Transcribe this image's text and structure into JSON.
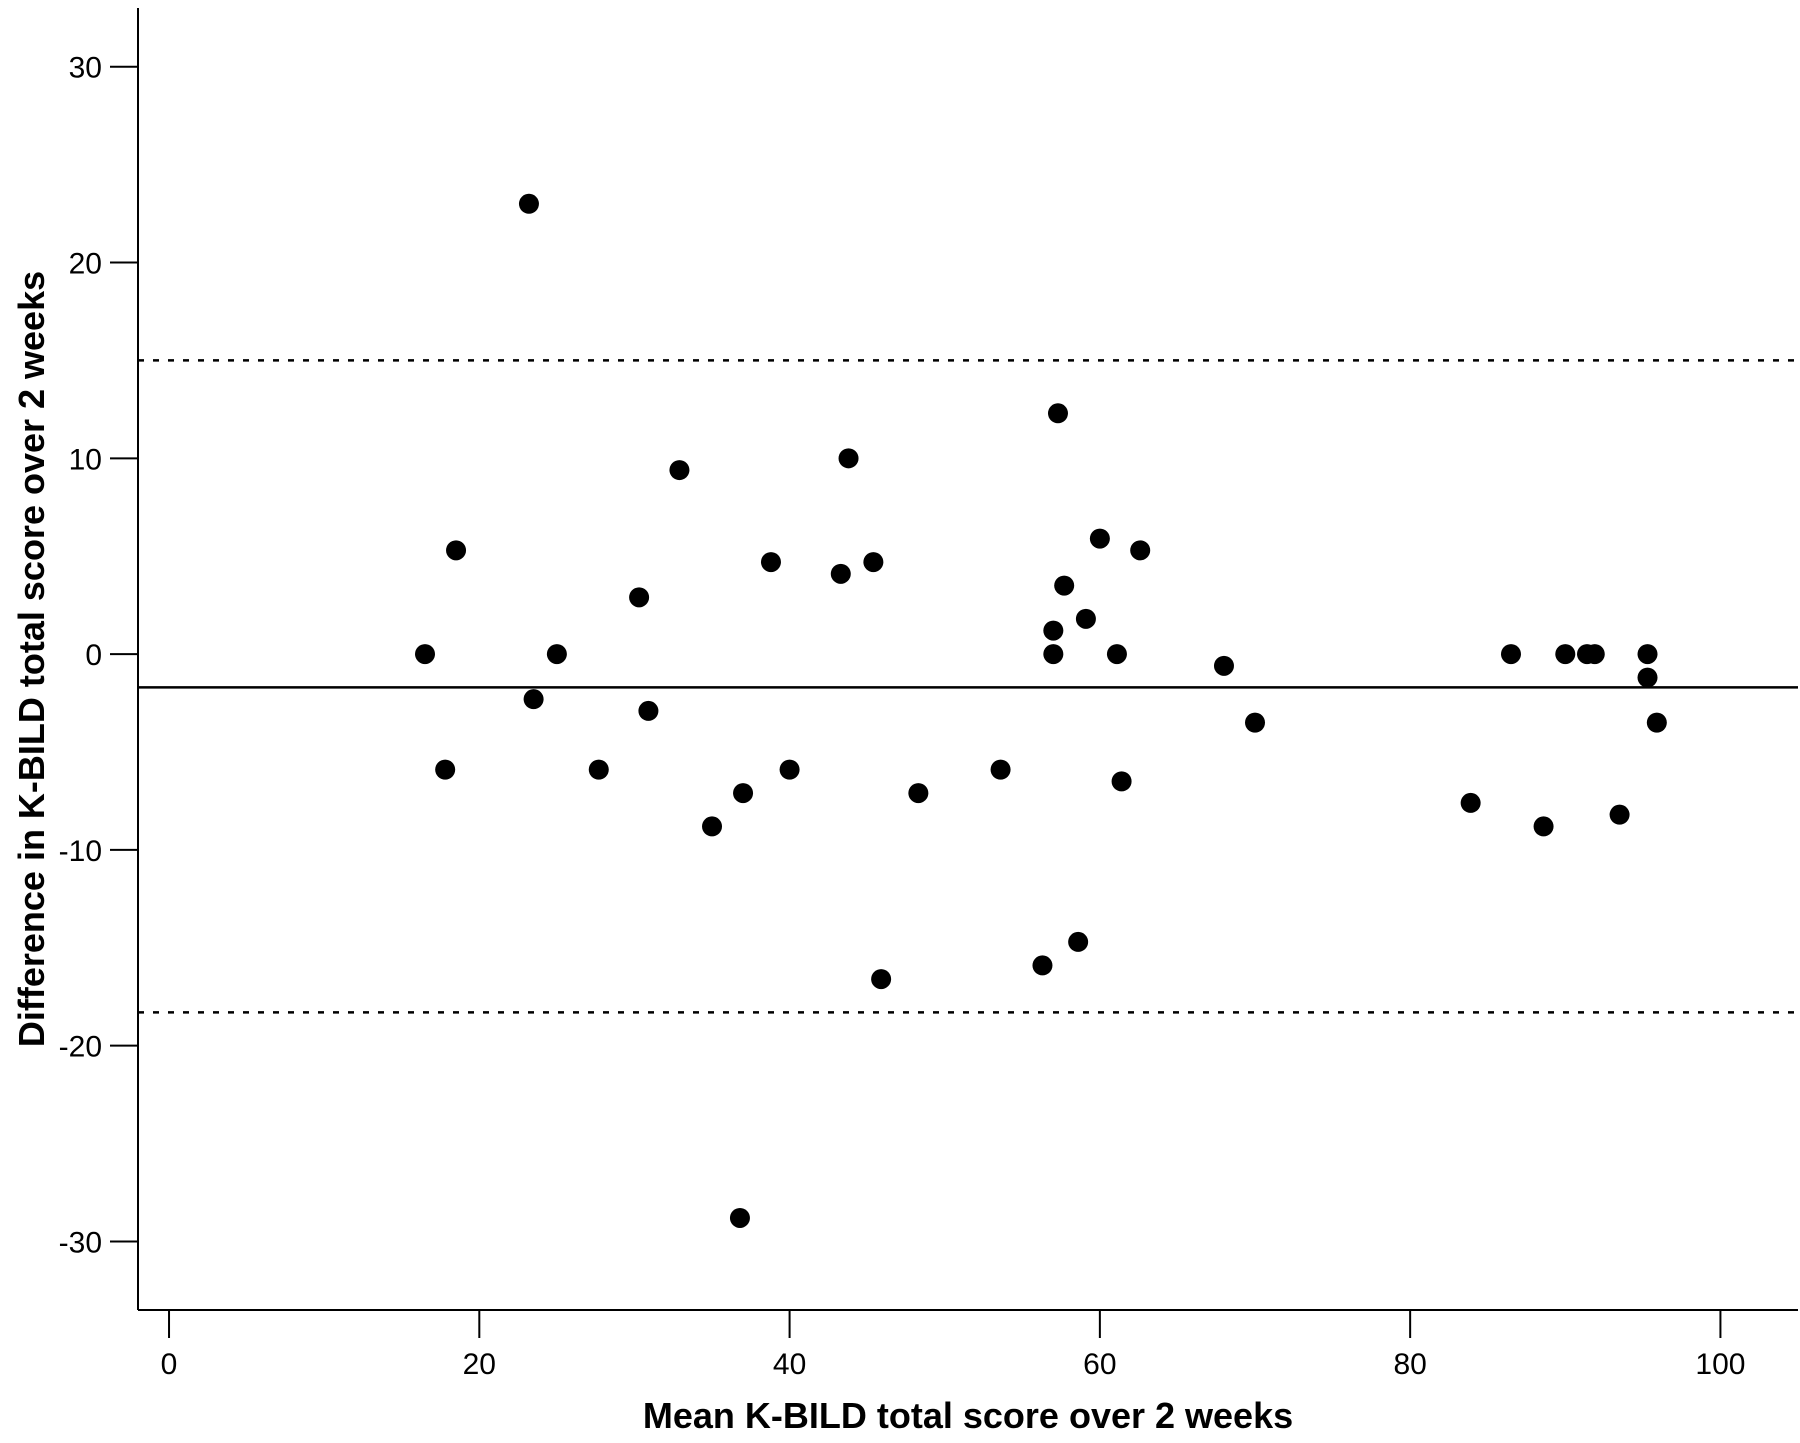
{
  "chart_data": {
    "type": "scatter",
    "title": "",
    "xlabel": "Mean K-BILD total score over 2 weeks",
    "ylabel": "Difference in K-BILD total score over 2 weeks",
    "xlim": [
      -2,
      105
    ],
    "ylim": [
      -33.5,
      33
    ],
    "x_ticks": [
      0,
      20,
      40,
      60,
      80,
      100
    ],
    "y_ticks": [
      -30,
      -20,
      -10,
      0,
      10,
      20,
      30
    ],
    "x_tick_labels": [
      "0",
      "20",
      "40",
      "60",
      "80",
      "100"
    ],
    "y_tick_labels": [
      "-30",
      "-20",
      "-10",
      "0",
      "10",
      "20",
      "30"
    ],
    "grid": false,
    "reference_lines": [
      {
        "name": "mean difference",
        "y": -1.7,
        "style": "solid"
      },
      {
        "name": "upper limit of agreement",
        "y": 15.0,
        "style": "dotted"
      },
      {
        "name": "lower limit of agreement",
        "y": -18.3,
        "style": "dotted"
      }
    ],
    "points": [
      {
        "x": 16.5,
        "y": 0
      },
      {
        "x": 17.8,
        "y": -5.9
      },
      {
        "x": 18.5,
        "y": 5.3
      },
      {
        "x": 23.2,
        "y": 23.0
      },
      {
        "x": 23.5,
        "y": -2.3
      },
      {
        "x": 25.0,
        "y": 0
      },
      {
        "x": 27.7,
        "y": -5.9
      },
      {
        "x": 30.3,
        "y": 2.9
      },
      {
        "x": 30.9,
        "y": -2.9
      },
      {
        "x": 32.9,
        "y": 9.4
      },
      {
        "x": 35.0,
        "y": -8.8
      },
      {
        "x": 36.8,
        "y": -28.8
      },
      {
        "x": 37.0,
        "y": -7.1
      },
      {
        "x": 38.8,
        "y": 4.7
      },
      {
        "x": 40.0,
        "y": -5.9
      },
      {
        "x": 43.3,
        "y": 4.1
      },
      {
        "x": 43.8,
        "y": 10.0
      },
      {
        "x": 45.4,
        "y": 4.7
      },
      {
        "x": 45.9,
        "y": -16.6
      },
      {
        "x": 48.3,
        "y": -7.1
      },
      {
        "x": 53.6,
        "y": -5.9
      },
      {
        "x": 56.3,
        "y": -15.9
      },
      {
        "x": 57.0,
        "y": 1.2
      },
      {
        "x": 57.0,
        "y": 0
      },
      {
        "x": 57.3,
        "y": 12.3
      },
      {
        "x": 57.7,
        "y": 3.5
      },
      {
        "x": 58.6,
        "y": -14.7
      },
      {
        "x": 59.1,
        "y": 1.8
      },
      {
        "x": 60.0,
        "y": 5.9
      },
      {
        "x": 61.1,
        "y": 0
      },
      {
        "x": 61.4,
        "y": -6.5
      },
      {
        "x": 62.6,
        "y": 5.3
      },
      {
        "x": 68.0,
        "y": -0.6
      },
      {
        "x": 70.0,
        "y": -3.5
      },
      {
        "x": 83.9,
        "y": -7.6
      },
      {
        "x": 86.5,
        "y": 0
      },
      {
        "x": 88.6,
        "y": -8.8
      },
      {
        "x": 90.0,
        "y": 0
      },
      {
        "x": 91.4,
        "y": 0
      },
      {
        "x": 91.9,
        "y": 0
      },
      {
        "x": 93.5,
        "y": -8.2
      },
      {
        "x": 95.3,
        "y": 0
      },
      {
        "x": 95.3,
        "y": -1.2
      },
      {
        "x": 95.9,
        "y": -3.5
      }
    ]
  }
}
